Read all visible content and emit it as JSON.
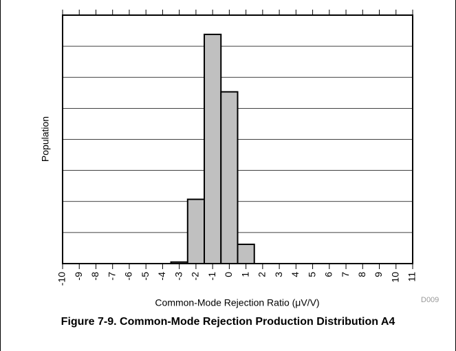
{
  "chart_data": {
    "type": "histogram",
    "title": "Figure 7-9. Common-Mode Rejection Production Distribution A4",
    "xlabel": "Common-Mode Rejection Ratio (μV/V)",
    "ylabel": "Population",
    "note": "D009",
    "bins": [
      -3.5,
      -2.5,
      -1.5,
      -0.5,
      0.5,
      1.5
    ],
    "values": [
      0.05,
      2.07,
      7.38,
      5.53,
      0.62
    ],
    "color": "#c0c0c0",
    "xlim": [
      -10,
      11
    ],
    "xticks": [
      -10,
      -9,
      -8,
      -7,
      -6,
      -5,
      -4,
      -3,
      -2,
      -1,
      0,
      1,
      2,
      3,
      4,
      5,
      6,
      7,
      8,
      9,
      10,
      11
    ],
    "ylim": [
      0,
      8
    ],
    "yticks": [
      1,
      2,
      3,
      4,
      5,
      6,
      7
    ],
    "grid": true
  }
}
